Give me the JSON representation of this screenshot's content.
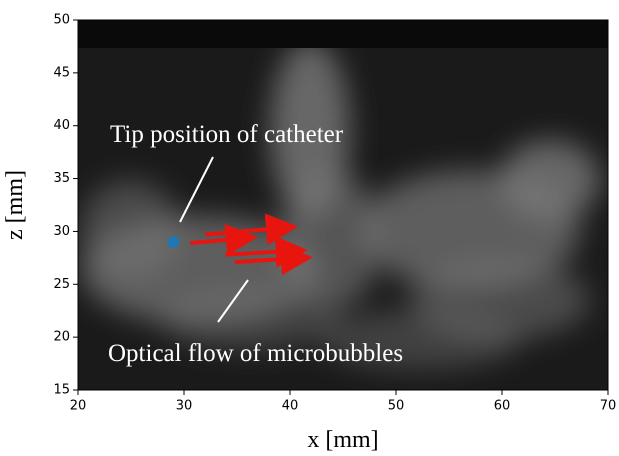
{
  "chart_data": {
    "type": "scatter",
    "xlabel": "x [mm]",
    "ylabel": "z [mm]",
    "xlim": [
      20,
      70
    ],
    "xticks": [
      20,
      30,
      40,
      50,
      60,
      70
    ],
    "ylim": [
      15,
      50
    ],
    "yticks": [
      15,
      20,
      25,
      30,
      35,
      40,
      45,
      50
    ],
    "points": [
      {
        "name": "Tip position of catheter",
        "x": 29,
        "y": 29,
        "color": "#1f77b4"
      }
    ],
    "arrows": {
      "name": "Optical flow of microbubbles",
      "color": "#e8150f",
      "x0": [
        30.6,
        32.0,
        33.9,
        34.8
      ],
      "y0": [
        28.9,
        29.7,
        27.8,
        27.1
      ],
      "x1": [
        36.2,
        40.0,
        40.9,
        41.4
      ],
      "y1": [
        29.4,
        30.4,
        28.2,
        27.5
      ]
    }
  }
}
